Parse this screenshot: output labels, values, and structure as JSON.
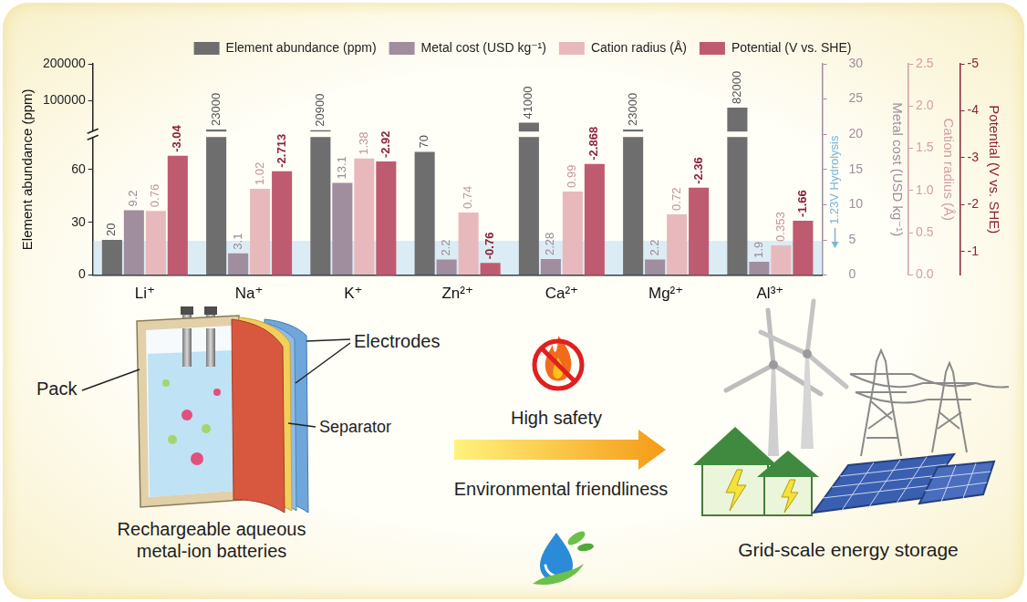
{
  "chart_data": {
    "type": "bar",
    "categories": [
      "Li⁺",
      "Na⁺",
      "K⁺",
      "Zn²⁺",
      "Ca²⁺",
      "Mg²⁺",
      "Al³⁺"
    ],
    "series": [
      {
        "name": "Element abundance (ppm)",
        "color": "#6e6e6e",
        "axis": "y",
        "values": [
          20,
          23000,
          20900,
          70,
          41000,
          23000,
          82000
        ]
      },
      {
        "name": "Metal cost (USD kg⁻¹)",
        "color": "#a08e9e",
        "axis": "y2",
        "values": [
          9.2,
          3.1,
          13.1,
          2.2,
          2.28,
          2.2,
          1.9
        ]
      },
      {
        "name": "Cation radius (Å)",
        "color": "#e8b9bc",
        "axis": "y3",
        "values": [
          0.76,
          1.02,
          1.38,
          0.74,
          0.99,
          0.72,
          0.353
        ]
      },
      {
        "name": "Potential (V vs. SHE)",
        "color": "#bf5b70",
        "axis": "y4",
        "values": [
          -3.04,
          -2.713,
          -2.92,
          -0.76,
          -2.868,
          -2.36,
          -1.66
        ]
      }
    ],
    "axes": {
      "y": {
        "title": "Element abundance (ppm)",
        "segments": [
          {
            "ylim": [
              0,
              80
            ],
            "yticks": [
              0,
              30,
              60
            ]
          },
          {
            "ylim": [
              10000,
              200000
            ],
            "yticks": [
              100000,
              200000
            ]
          }
        ]
      },
      "y2": {
        "title": "Metal cost (USD kg⁻¹)",
        "ylim": [
          0,
          30
        ],
        "yticks": [
          0,
          5,
          10,
          15,
          20,
          25,
          30
        ]
      },
      "y3": {
        "title": "Cation radius (Å)",
        "ylim": [
          0,
          2.5
        ],
        "yticks": [
          {
            "value": 0,
            "label": "0.0"
          },
          0.5,
          {
            "value": 1,
            "label": "1.0"
          },
          1.5,
          {
            "value": 2,
            "label": "2.0"
          },
          2.5
        ]
      },
      "y4": {
        "title": "Potential (V vs. SHE)",
        "ylim": [
          -0.5,
          -5
        ],
        "yticks": [
          -1,
          -2,
          -3,
          -4,
          -5
        ]
      }
    },
    "hydrolysis": {
      "label": "1.23V Hydrolysis",
      "range": [
        0,
        -1.23
      ],
      "axis": "y4"
    },
    "data_labels": true,
    "grid": false,
    "legend": "top"
  },
  "diagram": {
    "battery": {
      "pack": "Pack",
      "electrodes": "Electrodes",
      "separator": "Separator",
      "caption": "Rechargeable aqueous metal-ion batteries"
    },
    "benefits": {
      "safety": "High safety",
      "environment": "Environmental friendliness"
    },
    "application": {
      "caption": "Grid-scale energy storage"
    }
  }
}
